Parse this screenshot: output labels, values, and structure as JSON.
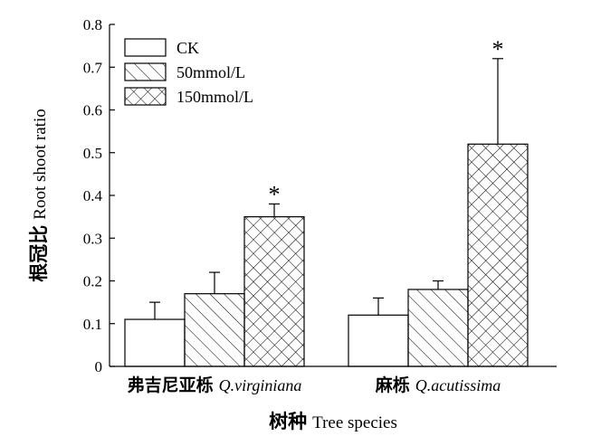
{
  "chart_data": {
    "type": "bar",
    "categories": [
      {
        "name": "弗吉尼亚栎",
        "latin": "Q.virginiana"
      },
      {
        "name": "麻栎",
        "latin": "Q.acutissima"
      }
    ],
    "series": [
      {
        "name": "CK",
        "pattern": "none",
        "values": [
          0.11,
          0.12
        ],
        "errors": [
          0.04,
          0.04
        ],
        "significance": [
          "",
          ""
        ]
      },
      {
        "name": "50mmol/L",
        "pattern": "diagonal",
        "values": [
          0.17,
          0.18
        ],
        "errors": [
          0.05,
          0.02
        ],
        "significance": [
          "",
          ""
        ]
      },
      {
        "name": "150mmol/L",
        "pattern": "crosshatch",
        "values": [
          0.35,
          0.52
        ],
        "errors": [
          0.03,
          0.2
        ],
        "significance": [
          "*",
          "*"
        ]
      }
    ],
    "ylabel_cn": "根冠比",
    "ylabel_en": "Root shoot ratio",
    "xlabel_cn": "树种",
    "xlabel_en": "Tree species",
    "ylim": [
      0,
      0.8
    ],
    "yticks": [
      "0",
      "0.1",
      "0.2",
      "0.3",
      "0.4",
      "0.5",
      "0.6",
      "0.7",
      "0.8"
    ],
    "legend_position": "top-left",
    "colors": {
      "bar_fill": "#ffffff",
      "stroke": "#000000"
    }
  }
}
